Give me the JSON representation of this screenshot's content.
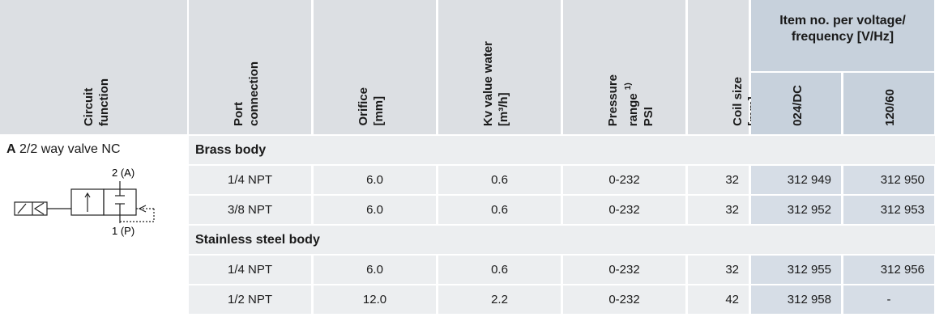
{
  "header": {
    "circuit_function": [
      "Circuit",
      "function"
    ],
    "port_connection": [
      "Port",
      "connection"
    ],
    "orifice": [
      "Orifice",
      "[mm]"
    ],
    "kv_value": [
      "Kv value water",
      "[m³/h]"
    ],
    "pressure": {
      "lines": [
        "Pressure",
        "range",
        "PSI"
      ],
      "footnote": "1)"
    },
    "coil_size": [
      "Coil size",
      "[mm]"
    ],
    "item_no": {
      "title": [
        "Item no. per voltage/",
        "frequency [V/Hz]"
      ],
      "voltages": [
        "024/DC",
        "120/60"
      ]
    }
  },
  "circuit": {
    "letter": "A",
    "text": "2/2 way valve NC",
    "port_a": "2 (A)",
    "port_p": "1 (P)"
  },
  "sections": [
    {
      "name": "Brass body",
      "rows": [
        [
          "1/4 NPT",
          "6.0",
          "0.6",
          "0-232",
          "32",
          "312 949",
          "312 950"
        ],
        [
          "3/8 NPT",
          "6.0",
          "0.6",
          "0-232",
          "32",
          "312 952",
          "312 953"
        ]
      ]
    },
    {
      "name": "Stainless steel body",
      "rows": [
        [
          "1/4 NPT",
          "6.0",
          "0.6",
          "0-232",
          "32",
          "312 955",
          "312 956"
        ],
        [
          "1/2 NPT",
          "12.0",
          "2.2",
          "0-232",
          "42",
          "312 958",
          "-"
        ]
      ]
    }
  ]
}
